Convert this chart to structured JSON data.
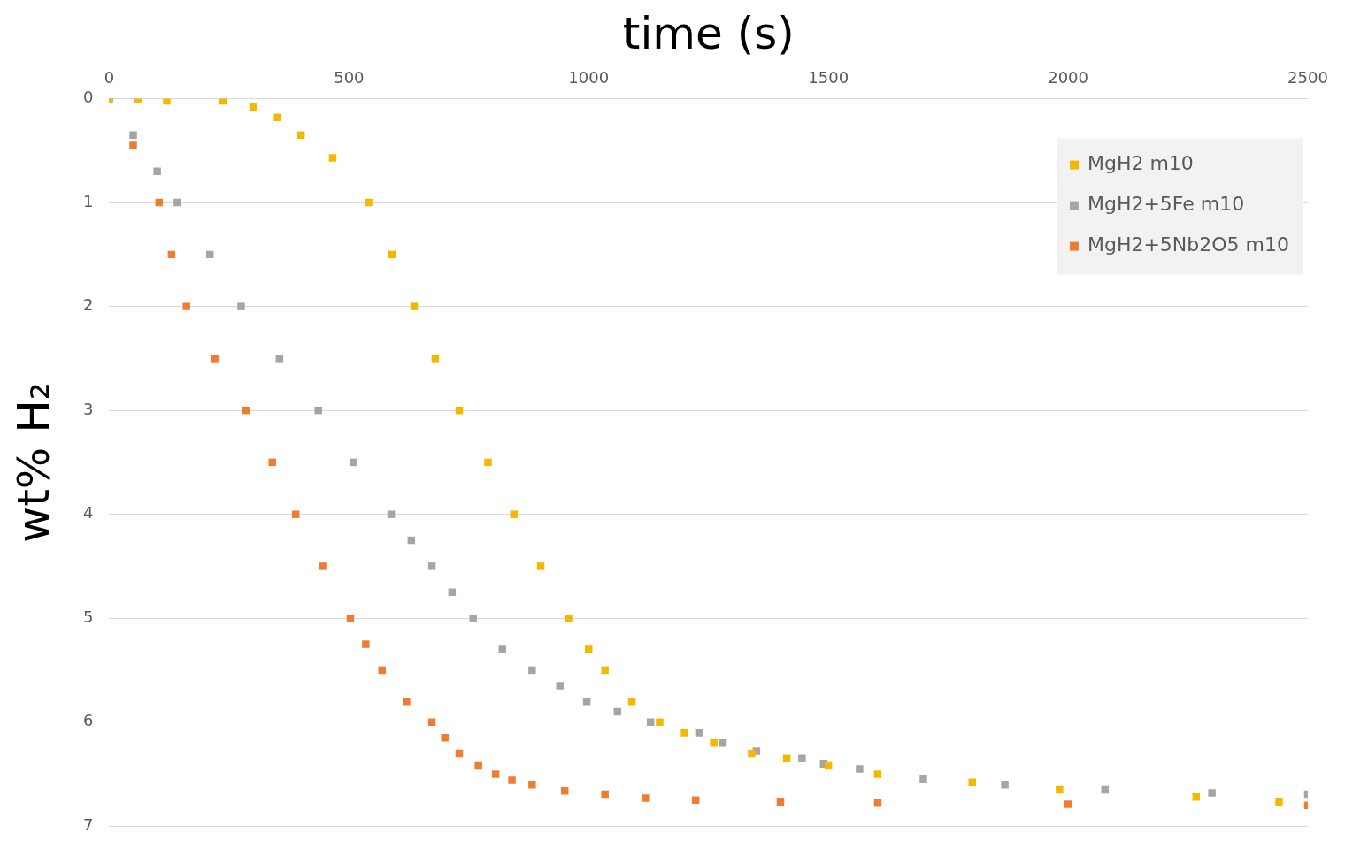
{
  "chart_data": {
    "type": "scatter",
    "xlabel": "time (s)",
    "ylabel": "wt% H₂",
    "xlim": [
      0,
      2500
    ],
    "xticks": [
      0,
      500,
      1000,
      1500,
      2000,
      2500
    ],
    "ylim": [
      7,
      0
    ],
    "yticks": [
      0,
      1,
      2,
      3,
      4,
      5,
      6,
      7
    ],
    "grid": "y",
    "legend": "top right",
    "marker": "square",
    "series": [
      {
        "name": "MgH2 m10",
        "color": "#f5b800",
        "x": [
          0,
          60,
          120,
          237,
          300,
          351,
          400,
          466,
          541,
          590,
          636,
          680,
          730,
          790,
          844,
          900,
          958,
          1000,
          1034,
          1090,
          1148,
          1200,
          1261,
          1340,
          1413,
          1500,
          1603,
          1800,
          1982,
          2267,
          2440
        ],
        "values": [
          0,
          0.01,
          0.02,
          0.02,
          0.08,
          0.18,
          0.35,
          0.57,
          1.0,
          1.5,
          2.0,
          2.5,
          3.0,
          3.5,
          4.0,
          4.5,
          5.0,
          5.3,
          5.5,
          5.8,
          6.0,
          6.1,
          6.2,
          6.3,
          6.35,
          6.42,
          6.5,
          6.58,
          6.65,
          6.72,
          6.77
        ]
      },
      {
        "name": "MgH2+5Fe m10",
        "color": "#a5a5a5",
        "x": [
          0,
          50,
          100,
          142,
          210,
          275,
          355,
          436,
          510,
          588,
          630,
          673,
          715,
          759,
          820,
          882,
          940,
          996,
          1060,
          1129,
          1230,
          1280,
          1350,
          1445,
          1490,
          1565,
          1698,
          1868,
          2077,
          2300,
          2500
        ],
        "values": [
          0,
          0.35,
          0.7,
          1.0,
          1.5,
          2.0,
          2.5,
          3.0,
          3.5,
          4.0,
          4.25,
          4.5,
          4.75,
          5.0,
          5.3,
          5.5,
          5.65,
          5.8,
          5.9,
          6.0,
          6.1,
          6.2,
          6.28,
          6.35,
          6.4,
          6.45,
          6.55,
          6.6,
          6.65,
          6.68,
          6.7
        ]
      },
      {
        "name": "MgH2+5Nb2O5 m10",
        "color": "#ed7d31",
        "x": [
          0,
          50,
          104,
          130,
          161,
          220,
          285,
          340,
          389,
          445,
          503,
          535,
          569,
          620,
          673,
          700,
          730,
          770,
          806,
          840,
          882,
          950,
          1034,
          1120,
          1223,
          1400,
          1603,
          2000,
          2500
        ],
        "values": [
          0,
          0.45,
          1.0,
          1.5,
          2.0,
          2.5,
          3.0,
          3.5,
          4.0,
          4.5,
          5.0,
          5.25,
          5.5,
          5.8,
          6.0,
          6.15,
          6.3,
          6.42,
          6.5,
          6.56,
          6.6,
          6.66,
          6.7,
          6.73,
          6.75,
          6.77,
          6.78,
          6.79,
          6.8
        ]
      }
    ]
  }
}
